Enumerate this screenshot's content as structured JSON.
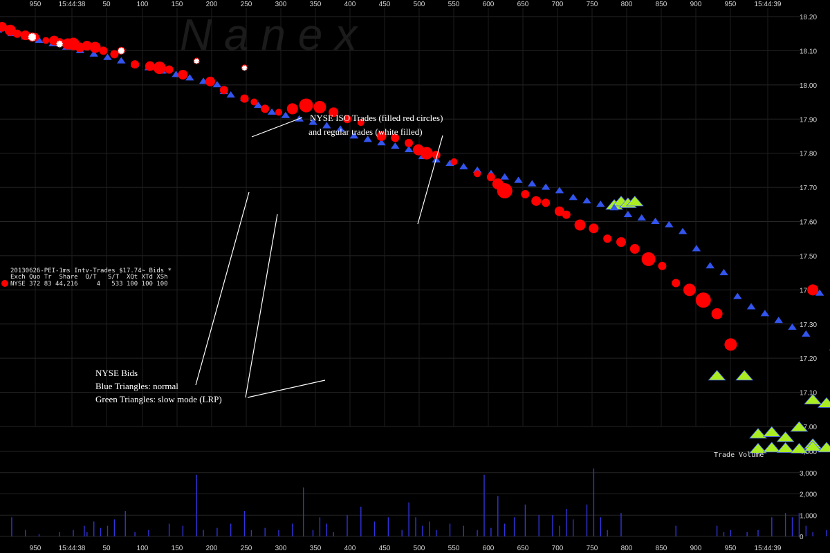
{
  "watermark": "N a n e x",
  "header_lines": [
    "20130626-PEI-1ms Intv-Trades $17.74~ Bids *",
    "Exch Quo Tr  Share  Q/T   S/T  XQt XTd XSh",
    "NYSE 372 83 44,216     4   533 100 100 100"
  ],
  "annotations": {
    "trades_line1": "NYSE ISO Trades (filled red circles)",
    "trades_line2": "and regular trades (white filled)",
    "bids_line1": "NYSE Bids",
    "bids_line2": "Blue Triangles: normal",
    "bids_line3": "Green Triangles: slow mode (LRP)"
  },
  "volume_title": "Trade Volume",
  "colors": {
    "background": "#000000",
    "iso_trade": "#ff0000",
    "regular_trade": "#ffffff",
    "bid_normal": "#3355ee",
    "bid_slow": "#aaee22",
    "volume_bar": "#3333dd"
  },
  "chart_data": {
    "type": "scatter",
    "x_tick_labels": [
      "950",
      "15:44:38",
      "50",
      "100",
      "150",
      "200",
      "250",
      "300",
      "350",
      "400",
      "450",
      "500",
      "550",
      "600",
      "650",
      "700",
      "750",
      "800",
      "850",
      "900",
      "950",
      "15:44:39"
    ],
    "y_price_ticks": [
      "18.20",
      "18.10",
      "18.00",
      "17.90",
      "17.80",
      "17.70",
      "17.60",
      "17.50",
      "17.40",
      "17.30",
      "17.20",
      "17.10",
      "17.00"
    ],
    "y_volume_ticks": [
      "4,000",
      "3,000",
      "2,000",
      "1,000",
      "0"
    ],
    "price_ylim": [
      17.0,
      18.2
    ],
    "volume_ylim": [
      0,
      4000
    ],
    "series": [
      {
        "kind": "iso",
        "points": [
          [
            -57,
            18.18,
            6
          ],
          [
            -52,
            18.17,
            7
          ],
          [
            -46,
            18.16,
            8
          ],
          [
            -41,
            18.15,
            6
          ],
          [
            -35,
            18.145,
            7
          ],
          [
            -28,
            18.14,
            6
          ],
          [
            -20,
            18.13,
            5
          ],
          [
            -14,
            18.13,
            7
          ],
          [
            -10,
            18.125,
            6
          ],
          [
            -4,
            18.12,
            8
          ],
          [
            0,
            18.12,
            9
          ],
          [
            5,
            18.11,
            7
          ],
          [
            10,
            18.115,
            7
          ],
          [
            16,
            18.11,
            8
          ],
          [
            22,
            18.1,
            6
          ],
          [
            30,
            18.09,
            6
          ],
          [
            45,
            18.06,
            6
          ],
          [
            56,
            18.055,
            7
          ],
          [
            63,
            18.05,
            9
          ],
          [
            70,
            18.045,
            6
          ],
          [
            80,
            18.03,
            7
          ],
          [
            100,
            18.01,
            7
          ],
          [
            110,
            17.985,
            6
          ],
          [
            125,
            17.96,
            6
          ],
          [
            132,
            17.95,
            5
          ],
          [
            140,
            17.93,
            6
          ],
          [
            150,
            17.92,
            5
          ],
          [
            160,
            17.93,
            8
          ],
          [
            170,
            17.94,
            10
          ],
          [
            180,
            17.935,
            9
          ],
          [
            190,
            17.92,
            7
          ],
          [
            200,
            17.9,
            6
          ],
          [
            210,
            17.89,
            5
          ],
          [
            225,
            17.85,
            7
          ],
          [
            235,
            17.845,
            6
          ],
          [
            245,
            17.83,
            6
          ],
          [
            252,
            17.81,
            8
          ],
          [
            258,
            17.8,
            9
          ],
          [
            265,
            17.795,
            6
          ],
          [
            278,
            17.775,
            5
          ],
          [
            295,
            17.74,
            5
          ],
          [
            305,
            17.73,
            6
          ],
          [
            310,
            17.71,
            8
          ],
          [
            315,
            17.69,
            11
          ],
          [
            330,
            17.68,
            6
          ],
          [
            338,
            17.66,
            7
          ],
          [
            345,
            17.655,
            6
          ],
          [
            355,
            17.63,
            7
          ],
          [
            360,
            17.62,
            6
          ],
          [
            370,
            17.59,
            8
          ],
          [
            380,
            17.58,
            7
          ],
          [
            390,
            17.55,
            6
          ],
          [
            400,
            17.54,
            7
          ],
          [
            410,
            17.52,
            7
          ],
          [
            420,
            17.49,
            10
          ],
          [
            430,
            17.47,
            6
          ],
          [
            440,
            17.42,
            6
          ],
          [
            450,
            17.4,
            9
          ],
          [
            460,
            17.37,
            11
          ],
          [
            470,
            17.33,
            8
          ],
          [
            480,
            17.24,
            9
          ],
          [
            540,
            17.4,
            8
          ],
          [
            620,
            17.53,
            8
          ],
          [
            650,
            17.46,
            8
          ],
          [
            660,
            17.41,
            5
          ],
          [
            670,
            17.385,
            6
          ],
          [
            680,
            17.37,
            5
          ],
          [
            690,
            17.34,
            5
          ]
        ]
      },
      {
        "kind": "regular",
        "points": [
          [
            -30,
            18.14,
            6
          ],
          [
            -10,
            18.12,
            5
          ],
          [
            35,
            18.1,
            5
          ],
          [
            90,
            18.07,
            4
          ],
          [
            125,
            18.05,
            4
          ],
          [
            560,
            17.55,
            5
          ],
          [
            570,
            17.57,
            4
          ],
          [
            580,
            17.49,
            4
          ],
          [
            590,
            17.54,
            6
          ],
          [
            600,
            17.49,
            6
          ],
          [
            610,
            17.53,
            4
          ],
          [
            730,
            17.335,
            5
          ],
          [
            730,
            17.2,
            5
          ]
        ]
      },
      {
        "kind": "bid_normal",
        "points": [
          [
            -55,
            18.17
          ],
          [
            -45,
            18.16
          ],
          [
            -35,
            18.15
          ],
          [
            -25,
            18.14
          ],
          [
            -15,
            18.13
          ],
          [
            -5,
            18.12
          ],
          [
            5,
            18.11
          ],
          [
            15,
            18.1
          ],
          [
            25,
            18.09
          ],
          [
            35,
            18.08
          ],
          [
            45,
            18.07
          ],
          [
            55,
            18.06
          ],
          [
            65,
            18.05
          ],
          [
            75,
            18.04
          ],
          [
            85,
            18.03
          ],
          [
            95,
            18.02
          ],
          [
            105,
            18.01
          ],
          [
            110,
            17.99
          ],
          [
            115,
            17.98
          ],
          [
            125,
            17.97
          ],
          [
            135,
            17.95
          ],
          [
            145,
            17.93
          ],
          [
            155,
            17.92
          ],
          [
            165,
            17.91
          ],
          [
            175,
            17.9
          ],
          [
            185,
            17.89
          ],
          [
            195,
            17.88
          ],
          [
            205,
            17.86
          ],
          [
            215,
            17.85
          ],
          [
            225,
            17.84
          ],
          [
            235,
            17.83
          ],
          [
            245,
            17.82
          ],
          [
            255,
            17.8
          ],
          [
            265,
            17.79
          ],
          [
            275,
            17.78
          ],
          [
            285,
            17.77
          ],
          [
            295,
            17.76
          ],
          [
            305,
            17.75
          ],
          [
            315,
            17.74
          ],
          [
            325,
            17.73
          ],
          [
            335,
            17.72
          ],
          [
            345,
            17.71
          ],
          [
            355,
            17.7
          ],
          [
            365,
            17.68
          ],
          [
            375,
            17.67
          ],
          [
            385,
            17.66
          ],
          [
            395,
            17.65
          ],
          [
            405,
            17.63
          ],
          [
            415,
            17.62
          ],
          [
            425,
            17.61
          ],
          [
            435,
            17.6
          ],
          [
            445,
            17.58
          ],
          [
            455,
            17.53
          ],
          [
            465,
            17.48
          ],
          [
            475,
            17.46
          ],
          [
            485,
            17.39
          ],
          [
            495,
            17.36
          ],
          [
            505,
            17.34
          ],
          [
            515,
            17.32
          ],
          [
            525,
            17.3
          ],
          [
            535,
            17.28
          ],
          [
            545,
            17.4
          ],
          [
            555,
            17.24
          ],
          [
            615,
            17.5
          ],
          [
            625,
            17.49
          ],
          [
            635,
            17.47
          ],
          [
            645,
            17.44
          ],
          [
            655,
            17.39
          ],
          [
            665,
            17.37
          ],
          [
            675,
            17.35
          ],
          [
            685,
            17.29
          ],
          [
            695,
            17.22
          ]
        ]
      },
      {
        "kind": "bid_slow",
        "points": [
          [
            395,
            17.65
          ],
          [
            400,
            17.66
          ],
          [
            405,
            17.655
          ],
          [
            410,
            17.66
          ],
          [
            470,
            17.15
          ],
          [
            490,
            17.15
          ],
          [
            500,
            16.98
          ],
          [
            510,
            16.985
          ],
          [
            520,
            16.97
          ],
          [
            540,
            16.95
          ],
          [
            530,
            17.0
          ],
          [
            540,
            17.08
          ],
          [
            550,
            17.07
          ],
          [
            560,
            17.02
          ],
          [
            570,
            17.0
          ],
          [
            565,
            16.97
          ],
          [
            575,
            16.99
          ],
          [
            585,
            16.985
          ],
          [
            595,
            16.99
          ],
          [
            605,
            17.0
          ],
          [
            615,
            16.99
          ],
          [
            625,
            16.985
          ],
          [
            635,
            17.0
          ],
          [
            645,
            16.98
          ],
          [
            655,
            17.13
          ],
          [
            665,
            16.98
          ],
          [
            680,
            16.98
          ],
          [
            700,
            16.98
          ],
          [
            720,
            16.98
          ],
          [
            740,
            16.985
          ],
          [
            750,
            16.99
          ],
          [
            765,
            16.98
          ],
          [
            780,
            16.99
          ],
          [
            790,
            16.98
          ],
          [
            810,
            16.98
          ],
          [
            820,
            16.99
          ],
          [
            840,
            16.985
          ],
          [
            850,
            16.99
          ],
          [
            860,
            16.98
          ],
          [
            870,
            16.99
          ],
          [
            880,
            16.995
          ],
          [
            890,
            16.99
          ],
          [
            905,
            16.99
          ],
          [
            1015,
            16.99
          ]
        ],
        "below_axis_points": [
          [
            500,
            4150
          ],
          [
            510,
            4200
          ],
          [
            520,
            4180
          ],
          [
            530,
            4150
          ],
          [
            540,
            4250
          ],
          [
            550,
            4200
          ],
          [
            560,
            4300
          ]
        ]
      }
    ],
    "volume_bars": [
      [
        -55,
        200
      ],
      [
        -45,
        900
      ],
      [
        -35,
        300
      ],
      [
        -25,
        100
      ],
      [
        -10,
        200
      ],
      [
        0,
        300
      ],
      [
        8,
        500
      ],
      [
        10,
        200
      ],
      [
        15,
        700
      ],
      [
        20,
        400
      ],
      [
        25,
        500
      ],
      [
        30,
        800
      ],
      [
        38,
        1200
      ],
      [
        45,
        200
      ],
      [
        55,
        300
      ],
      [
        70,
        600
      ],
      [
        80,
        500
      ],
      [
        90,
        2900
      ],
      [
        95,
        300
      ],
      [
        105,
        400
      ],
      [
        115,
        600
      ],
      [
        125,
        1200
      ],
      [
        130,
        300
      ],
      [
        140,
        400
      ],
      [
        150,
        300
      ],
      [
        160,
        600
      ],
      [
        168,
        2300
      ],
      [
        175,
        300
      ],
      [
        180,
        900
      ],
      [
        185,
        600
      ],
      [
        190,
        200
      ],
      [
        200,
        1000
      ],
      [
        210,
        1400
      ],
      [
        220,
        700
      ],
      [
        230,
        900
      ],
      [
        240,
        300
      ],
      [
        245,
        1600
      ],
      [
        250,
        900
      ],
      [
        255,
        500
      ],
      [
        260,
        700
      ],
      [
        265,
        300
      ],
      [
        275,
        600
      ],
      [
        285,
        500
      ],
      [
        295,
        300
      ],
      [
        300,
        2900
      ],
      [
        305,
        400
      ],
      [
        310,
        1900
      ],
      [
        315,
        600
      ],
      [
        322,
        900
      ],
      [
        330,
        1500
      ],
      [
        340,
        1000
      ],
      [
        350,
        1000
      ],
      [
        355,
        500
      ],
      [
        360,
        1300
      ],
      [
        365,
        800
      ],
      [
        375,
        1500
      ],
      [
        380,
        3200
      ],
      [
        385,
        900
      ],
      [
        390,
        300
      ],
      [
        400,
        1100
      ],
      [
        440,
        500
      ],
      [
        470,
        500
      ],
      [
        475,
        200
      ],
      [
        480,
        300
      ],
      [
        492,
        200
      ],
      [
        500,
        300
      ],
      [
        510,
        900
      ],
      [
        520,
        1100
      ],
      [
        525,
        900
      ],
      [
        530,
        1100
      ],
      [
        535,
        500
      ],
      [
        540,
        200
      ],
      [
        550,
        300
      ],
      [
        640,
        300
      ]
    ]
  }
}
